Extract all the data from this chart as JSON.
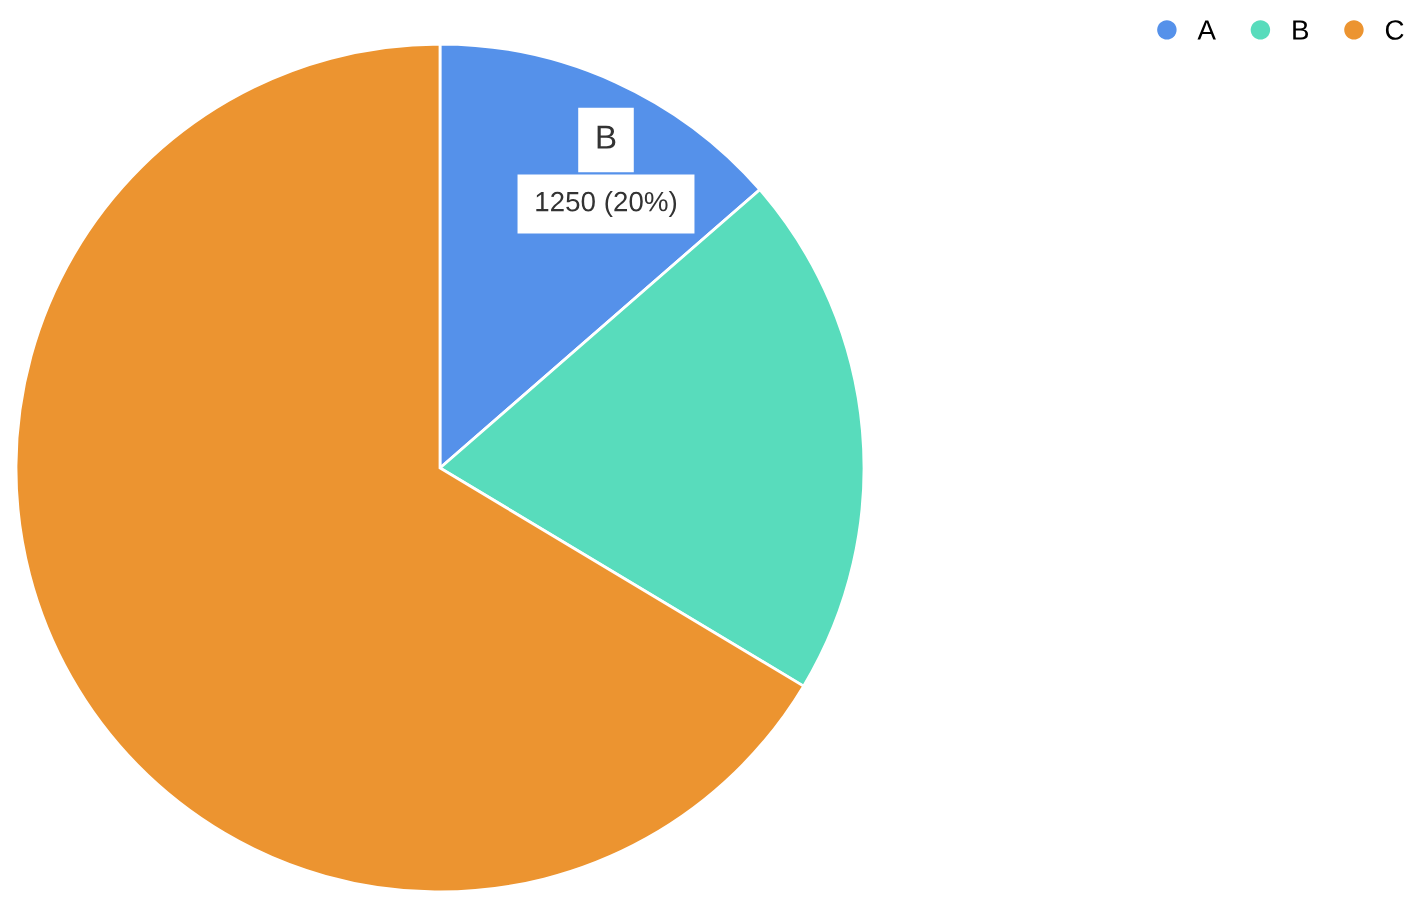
{
  "chart_data": {
    "type": "pie",
    "categories": [
      "A",
      "B",
      "C"
    ],
    "values": [
      13.6,
      20,
      66.4
    ],
    "colors": [
      "#5591ea",
      "#58dcbc",
      "#ec9430"
    ],
    "legend": "top right",
    "annotations": [
      "B",
      "1250 (20%)"
    ]
  }
}
